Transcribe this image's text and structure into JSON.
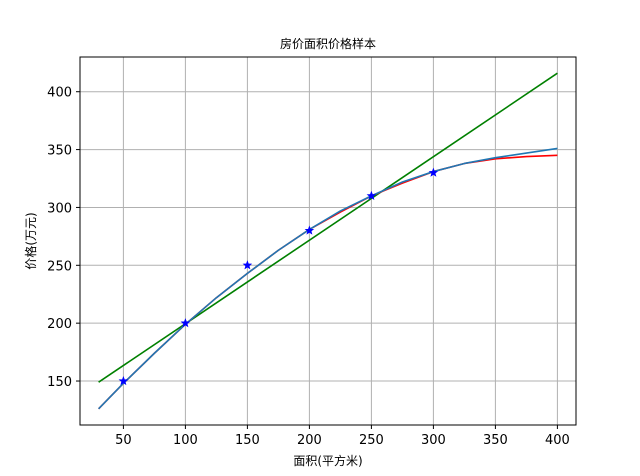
{
  "chart_data": {
    "type": "line",
    "title": "房价面积价格样本",
    "xlabel": "面积(平方米)",
    "ylabel": "价格(万元)",
    "xlim": [
      15,
      415
    ],
    "ylim": [
      112,
      430
    ],
    "xticks": [
      50,
      100,
      150,
      200,
      250,
      300,
      350,
      400
    ],
    "yticks": [
      150,
      200,
      250,
      300,
      350,
      400
    ],
    "grid": true,
    "points": {
      "marker": "star",
      "color": "#0000ff",
      "x": [
        50,
        100,
        150,
        200,
        250,
        300
      ],
      "y": [
        150,
        200,
        250,
        280,
        310,
        330
      ]
    },
    "series": [
      {
        "color": "#008000",
        "x": [
          30,
          400
        ],
        "y": [
          149,
          416
        ]
      },
      {
        "color": "#ff0000",
        "x": [
          30,
          50,
          75,
          100,
          125,
          150,
          175,
          200,
          225,
          250,
          275,
          300,
          325,
          350,
          375,
          400
        ],
        "y": [
          126,
          148,
          174,
          199,
          222,
          243,
          263,
          281,
          296,
          310,
          321,
          331,
          338,
          342,
          344,
          345
        ]
      },
      {
        "color": "#1f77b4",
        "x": [
          30,
          50,
          75,
          100,
          125,
          150,
          175,
          200,
          225,
          250,
          275,
          300,
          325,
          350,
          375,
          400
        ],
        "y": [
          126,
          148,
          174,
          199,
          222,
          243,
          263,
          281,
          297,
          310,
          322,
          331,
          338,
          343,
          347,
          351
        ]
      }
    ]
  }
}
